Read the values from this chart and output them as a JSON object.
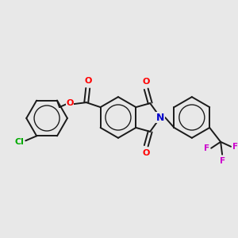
{
  "background_color": "#e8e8e8",
  "bond_color": "#1a1a1a",
  "atom_colors": {
    "O": "#ff0000",
    "N": "#0000cc",
    "Cl": "#00aa00",
    "F": "#cc00cc",
    "C": "#1a1a1a"
  },
  "figsize": [
    3.0,
    3.0
  ],
  "dpi": 100,
  "lw": 1.4,
  "fontsize": 8.5
}
